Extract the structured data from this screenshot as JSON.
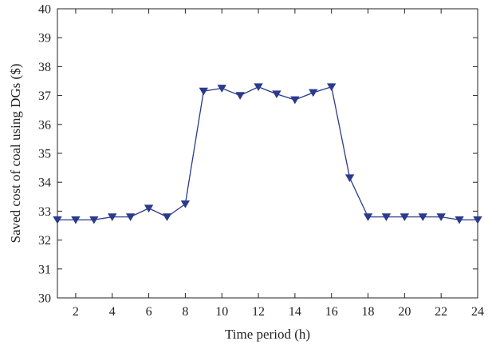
{
  "chart_data": {
    "type": "line",
    "xlabel": "Time period (h)",
    "ylabel": "Saved cost of coal using DGs ($)",
    "xlim": [
      1,
      24
    ],
    "ylim": [
      30,
      40
    ],
    "xticks": [
      2,
      4,
      6,
      8,
      10,
      12,
      14,
      16,
      18,
      20,
      22,
      24
    ],
    "yticks": [
      30,
      31,
      32,
      33,
      34,
      35,
      36,
      37,
      38,
      39,
      40
    ],
    "grid": false,
    "marker": "triangle-down",
    "color": "#2b3a8c",
    "series": [
      {
        "x": [
          1,
          2,
          3,
          4,
          5,
          6,
          7,
          8,
          9,
          10,
          11,
          12,
          13,
          14,
          15,
          16,
          17,
          18,
          19,
          20,
          21,
          22,
          23,
          24
        ],
        "y": [
          32.7,
          32.7,
          32.7,
          32.8,
          32.8,
          33.1,
          32.8,
          33.25,
          37.15,
          37.25,
          37.0,
          37.3,
          37.05,
          36.85,
          37.1,
          37.3,
          34.15,
          32.8,
          32.8,
          32.8,
          32.8,
          32.8,
          32.7,
          32.7
        ]
      }
    ]
  }
}
